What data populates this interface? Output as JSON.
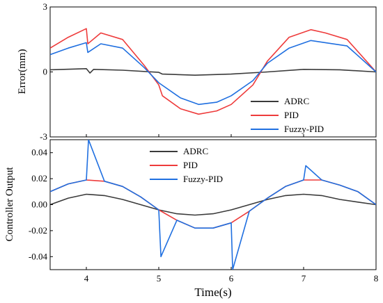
{
  "colors": {
    "ADRC": "#3a3a3a",
    "PID": "#ee3b3b",
    "Fuzzy-PID": "#1f6fe0",
    "axis": "#000000",
    "background": "#ffffff"
  },
  "shared_x": {
    "label": "Time(s)",
    "range": [
      3.5,
      8
    ],
    "ticks": [
      "4",
      "5",
      "6",
      "7",
      "8"
    ]
  },
  "chart_data": [
    {
      "type": "line",
      "ylabel": "Error(mm)",
      "xlabel": "",
      "xlim": [
        3.5,
        8
      ],
      "ylim": [
        -3,
        3
      ],
      "yticks": [
        "3",
        "0",
        "-3"
      ],
      "legend_position": "bottom-right",
      "legend": [
        "ADRC",
        "PID",
        "Fuzzy-PID"
      ],
      "series": [
        {
          "name": "ADRC",
          "x": [
            3.5,
            4.0,
            4.05,
            4.1,
            4.5,
            5.0,
            5.05,
            5.5,
            6.0,
            6.5,
            7.0,
            7.5,
            8.0
          ],
          "y": [
            0.1,
            0.15,
            -0.05,
            0.12,
            0.08,
            -0.02,
            -0.1,
            -0.15,
            -0.1,
            0.0,
            0.12,
            0.1,
            0.0
          ]
        },
        {
          "name": "PID",
          "x": [
            3.5,
            3.75,
            4.0,
            4.02,
            4.2,
            4.5,
            4.8,
            5.0,
            5.05,
            5.3,
            5.55,
            5.8,
            6.0,
            6.3,
            6.5,
            6.8,
            7.1,
            7.3,
            7.6,
            8.0
          ],
          "y": [
            1.1,
            1.6,
            2.0,
            1.3,
            1.8,
            1.5,
            0.3,
            -0.6,
            -1.1,
            -1.7,
            -1.95,
            -1.8,
            -1.5,
            -0.6,
            0.5,
            1.6,
            1.95,
            1.8,
            1.5,
            0.0
          ]
        },
        {
          "name": "Fuzzy-PID",
          "x": [
            3.5,
            3.75,
            4.0,
            4.02,
            4.2,
            4.5,
            4.8,
            5.0,
            5.3,
            5.55,
            5.8,
            6.0,
            6.3,
            6.5,
            6.8,
            7.1,
            7.3,
            7.6,
            8.0
          ],
          "y": [
            0.8,
            1.1,
            1.35,
            0.9,
            1.3,
            1.1,
            0.2,
            -0.5,
            -1.2,
            -1.5,
            -1.4,
            -1.1,
            -0.4,
            0.4,
            1.1,
            1.45,
            1.35,
            1.2,
            0.0
          ]
        }
      ]
    },
    {
      "type": "line",
      "ylabel": "Controller Output",
      "xlabel": "Time(s)",
      "xlim": [
        3.5,
        8
      ],
      "ylim": [
        -0.05,
        0.05
      ],
      "yticks": [
        "0.04",
        "0.02",
        "0.00",
        "-0.02",
        "-0.04"
      ],
      "legend_position": "top-right",
      "legend": [
        "ADRC",
        "PID",
        "Fuzzy-PID"
      ],
      "series": [
        {
          "name": "ADRC",
          "x": [
            3.5,
            3.75,
            4.0,
            4.25,
            4.5,
            4.75,
            5.0,
            5.25,
            5.5,
            5.75,
            6.0,
            6.25,
            6.5,
            6.75,
            7.0,
            7.25,
            7.5,
            7.75,
            8.0
          ],
          "y": [
            0.0,
            0.005,
            0.008,
            0.007,
            0.004,
            0.0,
            -0.004,
            -0.007,
            -0.008,
            -0.007,
            -0.004,
            0.0,
            0.004,
            0.007,
            0.008,
            0.007,
            0.004,
            0.002,
            0.0
          ]
        },
        {
          "name": "PID",
          "x": [
            3.5,
            3.75,
            4.0,
            4.25,
            4.5,
            4.75,
            5.0,
            5.25,
            5.5,
            5.75,
            6.0,
            6.25,
            6.5,
            6.75,
            7.0,
            7.25,
            7.5,
            7.75,
            8.0
          ],
          "y": [
            0.01,
            0.016,
            0.019,
            0.018,
            0.014,
            0.006,
            -0.004,
            -0.012,
            -0.018,
            -0.018,
            -0.014,
            -0.005,
            0.005,
            0.014,
            0.019,
            0.019,
            0.015,
            0.01,
            0.0
          ]
        },
        {
          "name": "Fuzzy-PID",
          "x": [
            3.5,
            3.75,
            4.0,
            4.03,
            4.25,
            4.5,
            4.75,
            5.0,
            5.03,
            5.25,
            5.5,
            5.75,
            6.0,
            6.02,
            6.25,
            6.5,
            6.75,
            7.0,
            7.03,
            7.25,
            7.5,
            7.75,
            8.0
          ],
          "y": [
            0.01,
            0.016,
            0.019,
            0.05,
            0.018,
            0.014,
            0.006,
            -0.004,
            -0.04,
            -0.012,
            -0.018,
            -0.018,
            -0.014,
            -0.05,
            -0.005,
            0.005,
            0.014,
            0.019,
            0.03,
            0.019,
            0.015,
            0.01,
            0.0
          ]
        }
      ]
    }
  ]
}
